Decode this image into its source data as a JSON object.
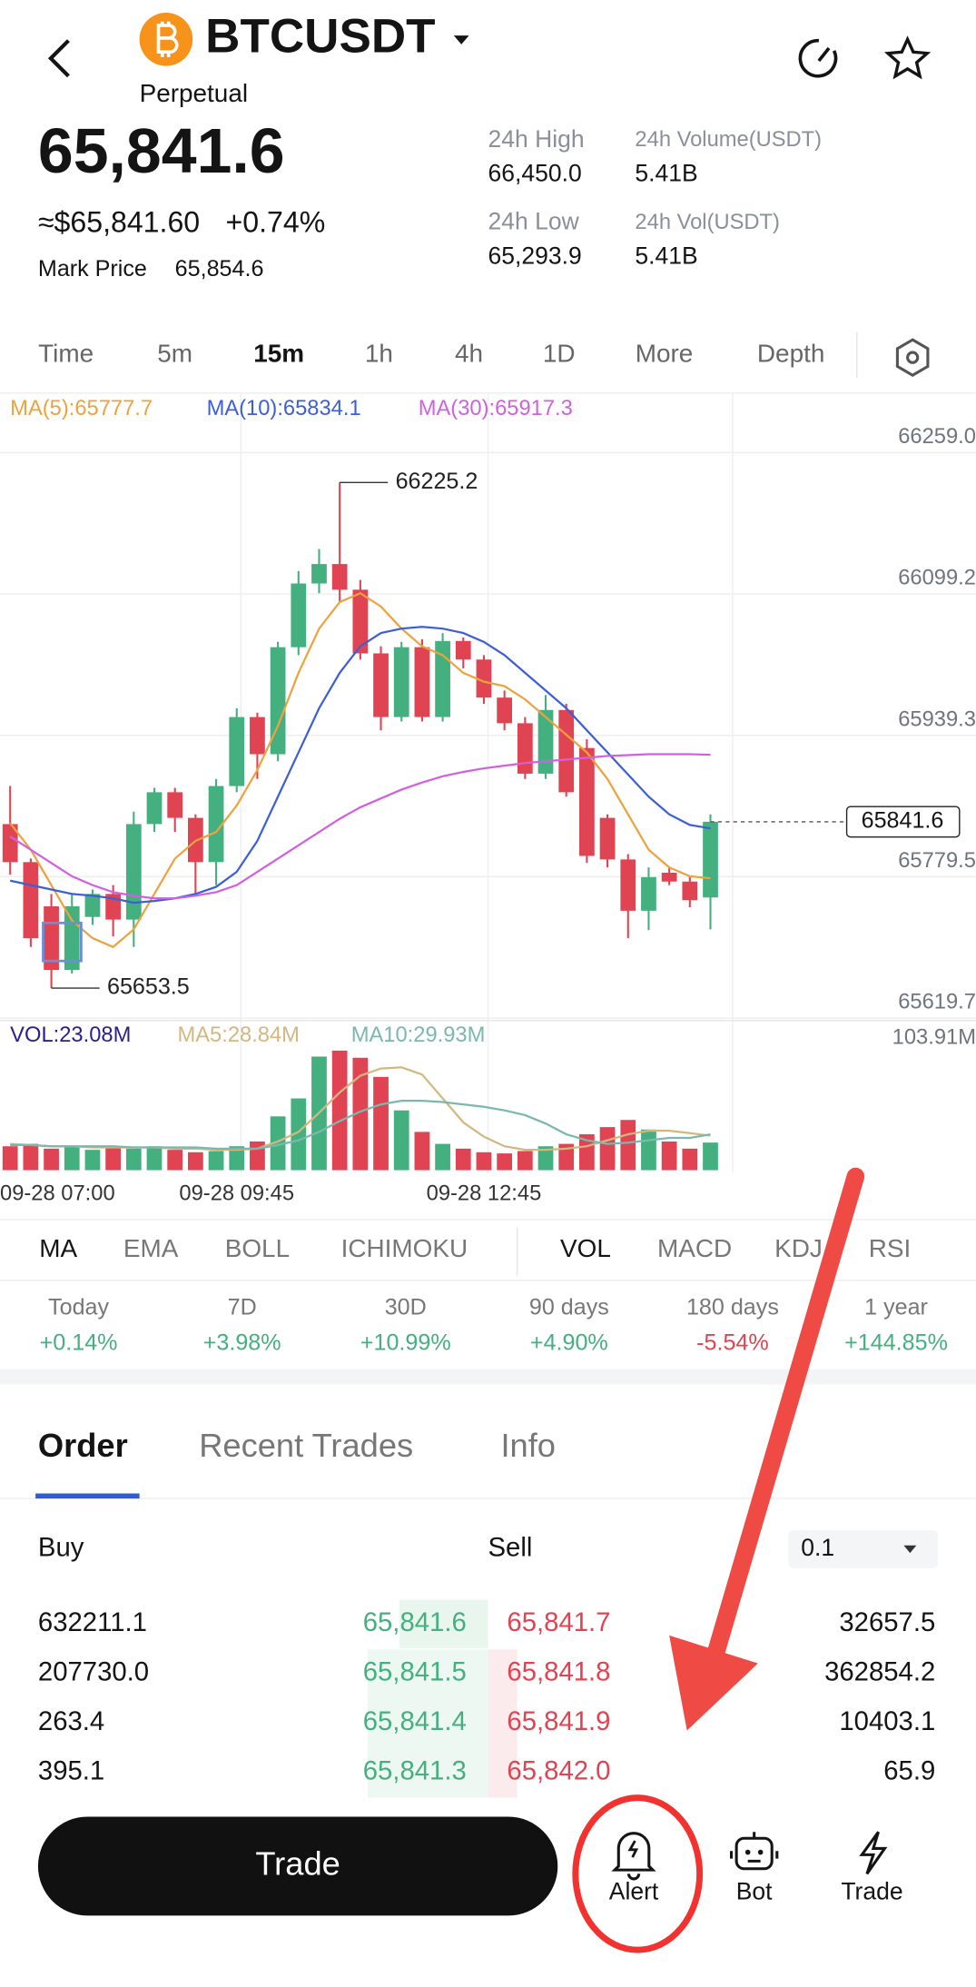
{
  "header": {
    "symbol": "BTCUSDT",
    "contract": "Perpetual"
  },
  "price": {
    "last": "65,841.6",
    "usd": "≈$65,841.60",
    "change": "+0.74%",
    "mark_label": "Mark Price",
    "mark": "65,854.6"
  },
  "stats": [
    {
      "label": "24h High",
      "value": "66,450.0"
    },
    {
      "label": "24h Volume(USDT)",
      "value": "5.41B"
    },
    {
      "label": "24h Low",
      "value": "65,293.9"
    },
    {
      "label": "24h Vol(USDT)",
      "value": "5.41B"
    }
  ],
  "intervals": {
    "items": [
      "Time",
      "5m",
      "15m",
      "1h",
      "4h",
      "1D",
      "More",
      "Depth"
    ],
    "selected": 2
  },
  "chart_data": [
    {
      "type": "candlestick",
      "up_color": "#45b07f",
      "down_color": "#e04452",
      "grid": true,
      "categories": [
        "09-28 07:00",
        null,
        null,
        null,
        null,
        null,
        null,
        null,
        null,
        null,
        null,
        "09-28 09:45",
        null,
        null,
        null,
        null,
        null,
        null,
        null,
        null,
        null,
        null,
        null,
        "09-28 12:45",
        null,
        null,
        null,
        null,
        null,
        null,
        null,
        null,
        null,
        null,
        null
      ],
      "candles": [
        [
          65839,
          65882,
          65782,
          65796
        ],
        [
          65796,
          65800,
          65700,
          65710
        ],
        [
          65746,
          65760,
          65653.5,
          65674
        ],
        [
          65674,
          65760,
          65670,
          65746
        ],
        [
          65734,
          65765,
          65725,
          65760
        ],
        [
          65760,
          65770,
          65712,
          65731
        ],
        [
          65731,
          65853,
          65700,
          65839
        ],
        [
          65839,
          65880,
          65830,
          65875
        ],
        [
          65875,
          65880,
          65830,
          65846
        ],
        [
          65846,
          65850,
          65760,
          65796
        ],
        [
          65796,
          65890,
          65770,
          65882
        ],
        [
          65882,
          65970,
          65875,
          65960
        ],
        [
          65960,
          65965,
          65890,
          65918
        ],
        [
          65918,
          66045,
          65910,
          66039
        ],
        [
          66039,
          66125,
          66030,
          66111
        ],
        [
          66111,
          66150,
          66100,
          66133
        ],
        [
          66133,
          66225.2,
          66090,
          66104
        ],
        [
          66104,
          66115,
          66025,
          66032
        ],
        [
          66032,
          66040,
          65945,
          65960
        ],
        [
          65960,
          66045,
          65955,
          66039
        ],
        [
          66039,
          66048,
          65955,
          65960
        ],
        [
          65960,
          66055,
          65955,
          66046
        ],
        [
          66046,
          66050,
          66015,
          66025
        ],
        [
          66025,
          66030,
          65975,
          65982
        ],
        [
          65982,
          65990,
          65945,
          65953
        ],
        [
          65953,
          65960,
          65890,
          65896
        ],
        [
          65896,
          65985,
          65890,
          65968
        ],
        [
          65968,
          65975,
          65870,
          65875
        ],
        [
          65925,
          65935,
          65795,
          65803
        ],
        [
          65846,
          65850,
          65790,
          65799
        ],
        [
          65799,
          65805,
          65710,
          65741
        ],
        [
          65741,
          65790,
          65719,
          65779
        ],
        [
          65784,
          65790,
          65770,
          65774
        ],
        [
          65774,
          65780,
          65745,
          65753
        ],
        [
          65756,
          65850,
          65720,
          65841.6
        ]
      ],
      "series": [
        {
          "name": "MA(5):65777.7",
          "color": "#eea23e",
          "values": [
            65840,
            65810,
            65770,
            65730,
            65710,
            65700,
            65720,
            65760,
            65800,
            65820,
            65830,
            65860,
            65900,
            65950,
            66010,
            66060,
            66090,
            66100,
            66085,
            66060,
            66040,
            66030,
            66010,
            66000,
            65995,
            65980,
            65960,
            65940,
            65920,
            65890,
            65850,
            65810,
            65790,
            65780,
            65777.7
          ]
        },
        {
          "name": "MA(10):65834.1",
          "color": "#3c5fd6",
          "values": [
            65775,
            65770,
            65765,
            65760,
            65758,
            65755,
            65750,
            65752,
            65755,
            65760,
            65768,
            65785,
            65820,
            65870,
            65920,
            65970,
            66010,
            66040,
            66055,
            66060,
            66062,
            66060,
            66055,
            66045,
            66030,
            66010,
            65990,
            65970,
            65945,
            65920,
            65895,
            65870,
            65850,
            65838,
            65834.1
          ]
        },
        {
          "name": "MA(30):65917.3",
          "color": "#d160e0",
          "values": [
            65825,
            65810,
            65795,
            65780,
            65770,
            65762,
            65758,
            65755,
            65755,
            65758,
            65762,
            65770,
            65785,
            65800,
            65815,
            65830,
            65845,
            65858,
            65868,
            65878,
            65886,
            65893,
            65898,
            65902,
            65905,
            65908,
            65910,
            65912,
            65914,
            65916,
            65917,
            65918,
            65918,
            65918,
            65917.3
          ]
        }
      ],
      "ylim": [
        65619.7,
        66259
      ],
      "yticks": [
        {
          "value": 66259,
          "label": "66259.0"
        },
        66099.2,
        65939.3,
        65779.5,
        65619.7
      ],
      "max_label": 66225.2,
      "min_label": 65653.5,
      "last_price": 65841.6
    },
    {
      "type": "bar",
      "ylim": [
        0,
        103.91
      ],
      "yticks": [
        {
          "value": 103.91,
          "label": "103.91M"
        }
      ],
      "series": [
        {
          "name": "VOL:23.08M",
          "color": "#2b1f8f",
          "values": [
            20,
            22,
            18,
            20,
            17,
            19,
            18,
            20,
            17,
            15,
            16,
            20,
            24,
            45,
            60,
            95,
            100,
            94,
            78,
            50,
            32,
            22,
            18,
            15,
            14,
            16,
            20,
            22,
            30,
            36,
            42,
            34,
            24,
            18,
            23.08
          ]
        },
        {
          "name": "MA5:28.84M",
          "color": "#d2b880",
          "values": [
            22,
            21,
            20,
            20,
            19,
            19,
            19,
            19,
            18,
            18,
            17,
            17,
            18,
            24,
            32,
            48,
            65,
            79,
            85,
            86,
            80,
            60,
            40,
            28,
            20,
            17,
            17,
            18,
            20,
            25,
            30,
            33,
            33,
            31,
            28.84
          ]
        },
        {
          "name": "MA10:29.93M",
          "color": "#7ab8ae",
          "values": [
            21,
            21,
            20,
            20,
            20,
            20,
            19,
            19,
            19,
            19,
            18,
            18,
            18,
            21,
            25,
            32,
            41,
            49,
            55,
            58,
            58,
            57,
            55,
            53,
            50,
            46,
            39,
            30,
            25,
            22,
            23,
            25,
            27,
            27,
            29.93
          ]
        }
      ]
    }
  ],
  "indicators": {
    "main": [
      "MA",
      "EMA",
      "BOLL",
      "ICHIMOKU"
    ],
    "sub": [
      "VOL",
      "MACD",
      "KDJ",
      "RSI"
    ],
    "main_selected": 0,
    "sub_selected": 0
  },
  "performance": [
    {
      "label": "Today",
      "value": "+0.14%"
    },
    {
      "label": "7D",
      "value": "+3.98%"
    },
    {
      "label": "30D",
      "value": "+10.99%"
    },
    {
      "label": "90 days",
      "value": "+4.90%"
    },
    {
      "label": "180 days",
      "value": "-5.54%"
    },
    {
      "label": "1 year",
      "value": "+144.85%"
    }
  ],
  "order_tabs": {
    "items": [
      "Order",
      "Recent Trades",
      "Info"
    ],
    "selected": 0
  },
  "order_book": {
    "buy_label": "Buy",
    "sell_label": "Sell",
    "precision": "0.1",
    "rows": [
      [
        "632211.1",
        "65,841.6",
        "65,841.7",
        "32657.5"
      ],
      [
        "207730.0",
        "65,841.5",
        "65,841.8",
        "362854.2"
      ],
      [
        "263.4",
        "65,841.4",
        "65,841.9",
        "10403.1"
      ],
      [
        "395.1",
        "65,841.3",
        "65,842.0",
        "65.9"
      ]
    ]
  },
  "actions": {
    "main": "Trade",
    "items": [
      "Alert",
      "Bot",
      "Trade"
    ]
  }
}
